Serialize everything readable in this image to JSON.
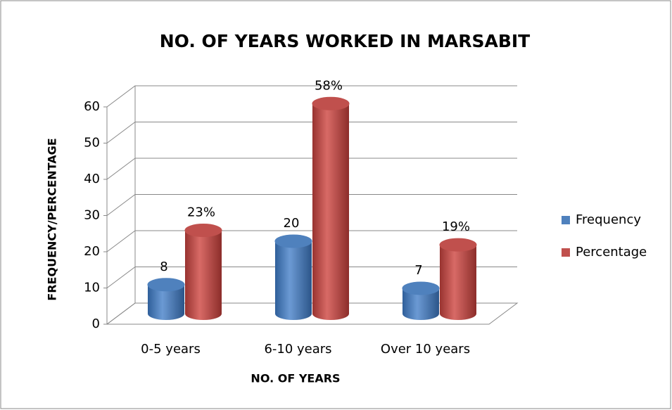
{
  "chart_data": {
    "type": "bar3d",
    "title": "NO. OF YEARS WORKED IN MARSABIT",
    "x_label": "NO. OF YEARS",
    "y_label": "FREQUENCY/PERCENTAGE",
    "categories": [
      "0-5 years",
      "6-10 years",
      "Over 10 years"
    ],
    "series": [
      {
        "name": "Frequency",
        "color": "#4f81bd",
        "values": [
          8,
          20,
          7
        ]
      },
      {
        "name": "Percentage",
        "color": "#c0504d",
        "values": [
          23,
          58,
          19
        ],
        "value_labels": [
          "23%",
          "58%",
          "19%"
        ]
      }
    ],
    "ylim": [
      0,
      60
    ],
    "yticks": [
      0,
      10,
      20,
      30,
      40,
      50,
      60
    ],
    "grid": true,
    "legend": "right"
  }
}
